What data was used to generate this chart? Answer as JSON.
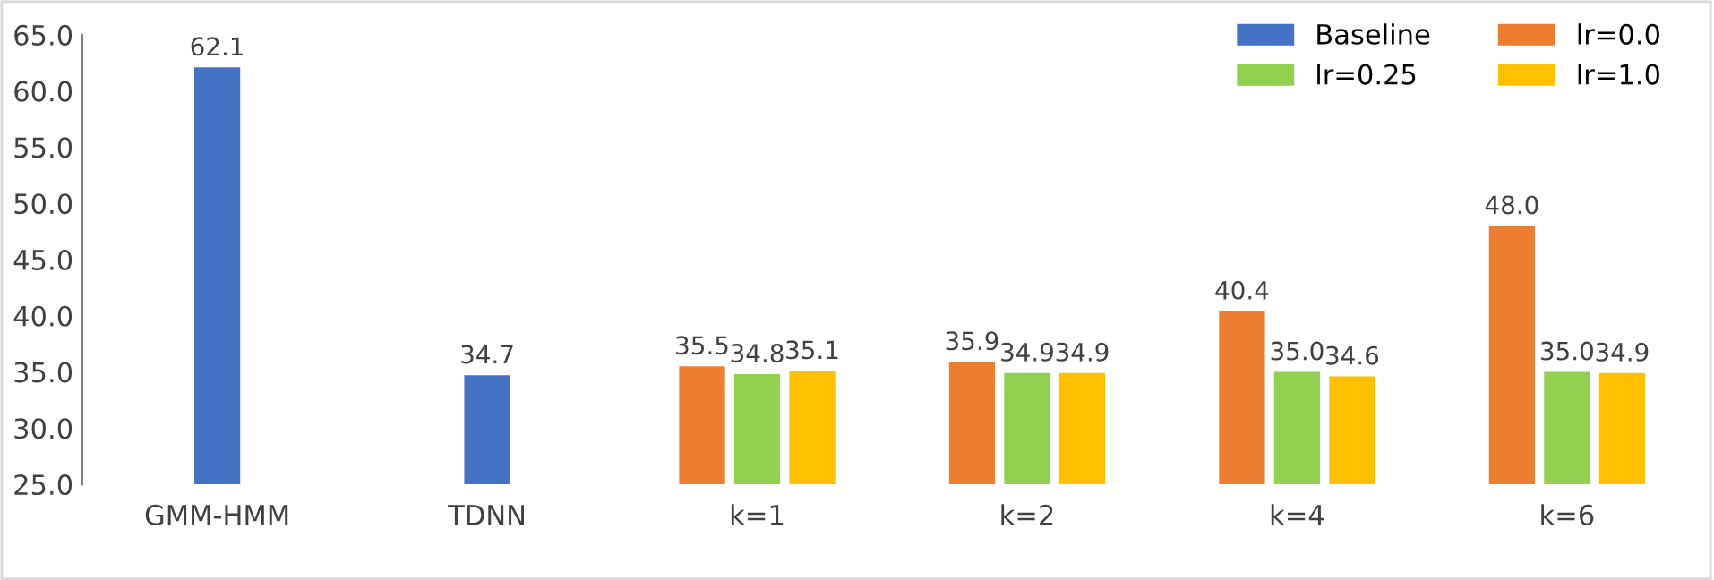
{
  "chart_data": {
    "type": "bar",
    "categories": [
      "GMM-HMM",
      "TDNN",
      "k=1",
      "k=2",
      "k=4",
      "k=6"
    ],
    "series": [
      {
        "name": "Baseline",
        "color": "#4472c4",
        "values": [
          62.1,
          34.7,
          null,
          null,
          null,
          null
        ],
        "value_labels": [
          "62.1",
          "34.7",
          null,
          null,
          null,
          null
        ]
      },
      {
        "name": "lr=0.0",
        "color": "#ed7d31",
        "values": [
          null,
          null,
          35.5,
          35.9,
          40.4,
          48.0
        ],
        "value_labels": [
          null,
          null,
          "35.5",
          "35.9",
          "40.4",
          "48.0"
        ]
      },
      {
        "name": "lr=0.25",
        "color": "#92d050",
        "values": [
          null,
          null,
          34.8,
          34.9,
          35.0,
          35.0
        ],
        "value_labels": [
          null,
          null,
          "34.8",
          "34.9",
          "35.0",
          "35.0"
        ]
      },
      {
        "name": "lr=1.0",
        "color": "#ffc000",
        "values": [
          null,
          null,
          35.1,
          34.9,
          34.6,
          34.9
        ],
        "value_labels": [
          null,
          null,
          "35.1",
          "34.9",
          "34.6",
          "34.9"
        ]
      }
    ],
    "ylim": [
      25,
      65
    ],
    "yticks": [
      {
        "value": 25,
        "label": "25.0"
      },
      {
        "value": 30,
        "label": "30.0"
      },
      {
        "value": 35,
        "label": "35.0"
      },
      {
        "value": 40,
        "label": "40.0"
      },
      {
        "value": 45,
        "label": "45.0"
      },
      {
        "value": 50,
        "label": "50.0"
      },
      {
        "value": 55,
        "label": "55.0"
      },
      {
        "value": 60,
        "label": "60.0"
      },
      {
        "value": 65,
        "label": "65.0"
      }
    ],
    "grid": false,
    "legend": "top right"
  }
}
